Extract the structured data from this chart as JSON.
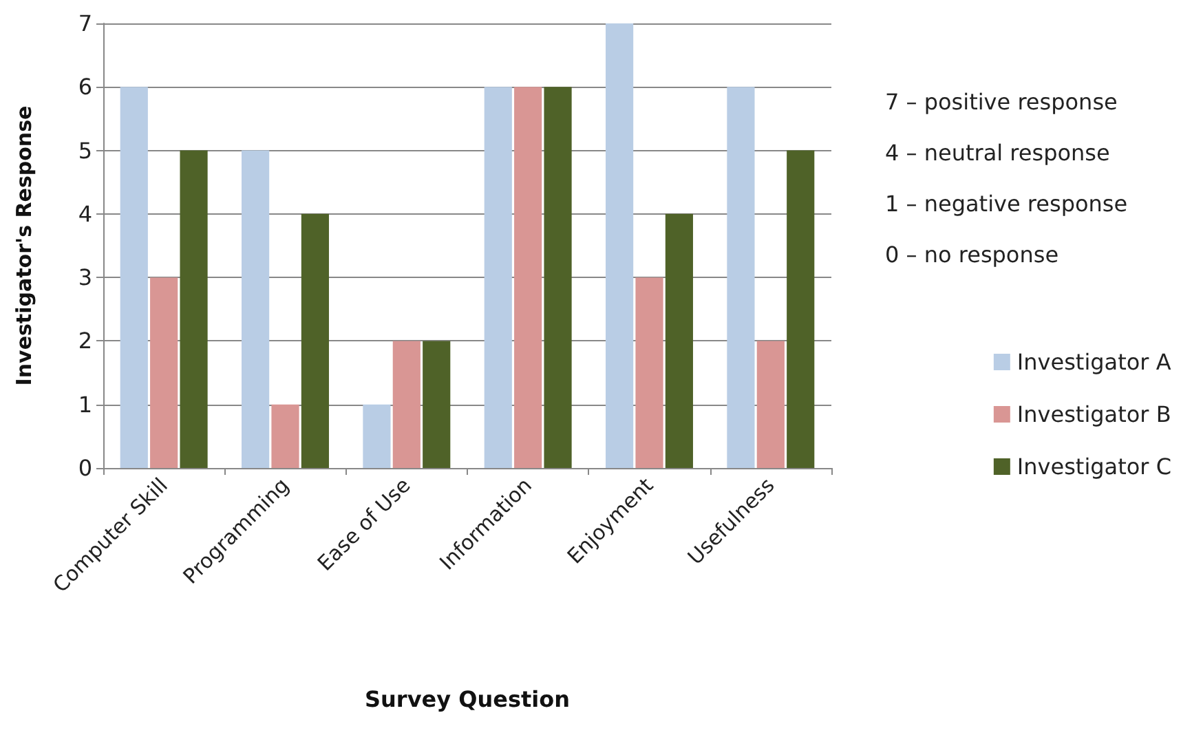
{
  "chart_data": {
    "type": "bar",
    "xlabel": "Survey Question",
    "ylabel": "Investigator's Response",
    "categories": [
      "Computer Skill",
      "Programming",
      "Ease of Use",
      "Information",
      "Enjoyment",
      "Usefulness"
    ],
    "series": [
      {
        "name": "Investigator A",
        "color": "#b9cde5",
        "values": [
          6,
          5,
          1,
          6,
          7,
          6
        ]
      },
      {
        "name": "Investigator B",
        "color": "#d99694",
        "values": [
          3,
          1,
          2,
          6,
          3,
          2
        ]
      },
      {
        "name": "Investigator C",
        "color": "#4f6228",
        "values": [
          5,
          4,
          2,
          6,
          4,
          5
        ]
      }
    ],
    "ylim": [
      0,
      7
    ],
    "yticks": [
      0,
      1,
      2,
      3,
      4,
      5,
      6,
      7
    ],
    "grid": "y",
    "legend": "right",
    "annotations": [
      "7 – positive response",
      "4 – neutral response",
      "1 – negative response",
      "0 – no response"
    ]
  }
}
